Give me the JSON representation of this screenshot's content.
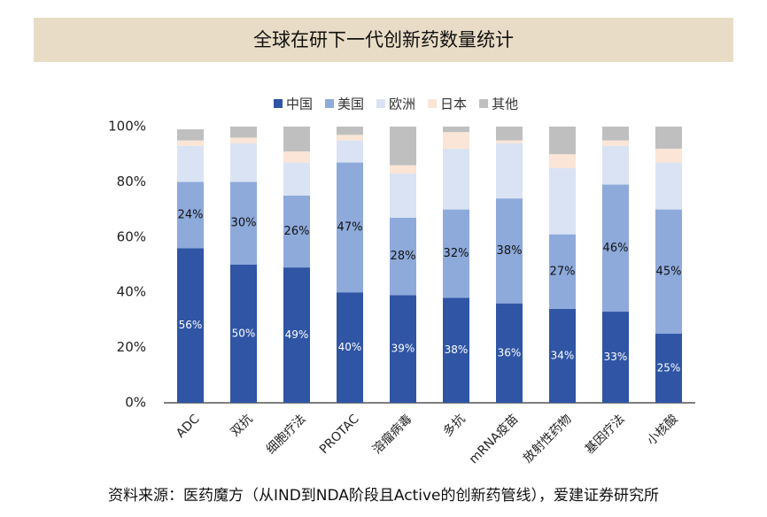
{
  "chart_data": {
    "type": "stacked_bar",
    "title": "全球在研下一代创新药数量统计",
    "categories": [
      "ADC",
      "双抗",
      "细胞疗法",
      "PROTAC",
      "溶瘤病毒",
      "多抗",
      "mRNA疫苗",
      "放射性药物",
      "基因疗法",
      "小核酸"
    ],
    "series": [
      {
        "name": "中国",
        "color": "#2f55a4",
        "values": [
          56,
          50,
          49,
          40,
          39,
          38,
          36,
          34,
          33,
          25
        ],
        "value_labels": [
          "56%",
          "50%",
          "49%",
          "40%",
          "39%",
          "38%",
          "36%",
          "34%",
          "33%",
          "25%"
        ]
      },
      {
        "name": "美国",
        "color": "#8eaadb",
        "values": [
          24,
          30,
          26,
          47,
          28,
          32,
          38,
          27,
          46,
          45
        ],
        "value_labels": [
          "24%",
          "30%",
          "26%",
          "47%",
          "28%",
          "32%",
          "38%",
          "27%",
          "46%",
          "45%"
        ]
      },
      {
        "name": "欧洲",
        "color": "#dae3f3",
        "values": [
          13,
          14,
          12,
          8,
          16,
          22,
          20,
          24,
          14,
          17
        ]
      },
      {
        "name": "日本",
        "color": "#fbe5d6",
        "values": [
          2,
          2,
          4,
          2,
          3,
          6,
          1,
          5,
          2,
          5
        ]
      },
      {
        "name": "其他",
        "color": "#bfbfbf",
        "values": [
          4,
          4,
          9,
          3,
          14,
          2,
          5,
          10,
          5,
          8
        ]
      }
    ],
    "ylim": [
      0,
      100
    ],
    "yticks": [
      {
        "value": 0,
        "label": "0%"
      },
      {
        "value": 20,
        "label": "20%"
      },
      {
        "value": 40,
        "label": "40%"
      },
      {
        "value": 60,
        "label": "60%"
      },
      {
        "value": 80,
        "label": "80%"
      },
      {
        "value": 100,
        "label": "100%"
      }
    ],
    "source": "资料来源：医药魔方（从IND到NDA阶段且Active的创新药管线），爱建证券研究所"
  }
}
